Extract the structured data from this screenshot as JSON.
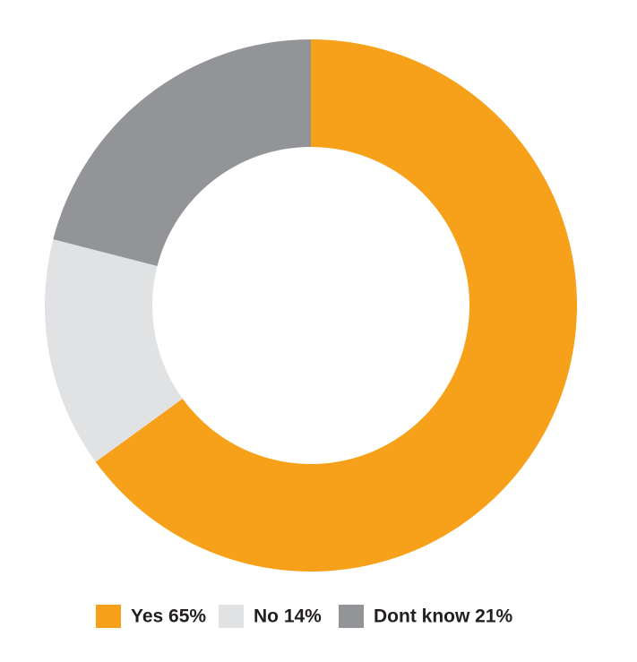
{
  "chart_data": {
    "type": "donut",
    "categories": [
      "Yes 65%",
      "No 14%",
      "Dont know 21%"
    ],
    "values": [
      65,
      14,
      21
    ],
    "colors": [
      "#f7a11a",
      "#e1e2e4",
      "#929497"
    ]
  }
}
